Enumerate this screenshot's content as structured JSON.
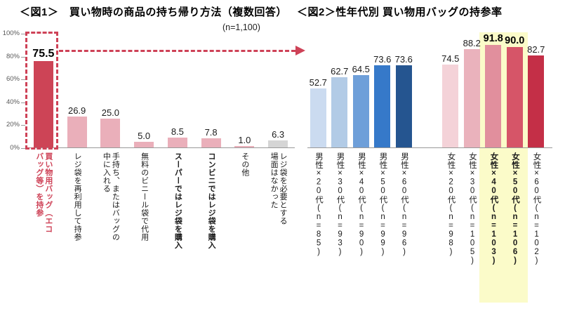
{
  "page": {
    "fig1_title": "＜図1＞　買い物時の商品の持ち帰り方法（複数回答）",
    "fig1_sample": "(n=1,100)",
    "fig2_title": "＜図2＞性年代別 買い物用バッグの持参率"
  },
  "colors": {
    "accent_red": "#CE4257",
    "highlight_yellow": "#FBFBC9",
    "axis_gray": "#999999"
  },
  "chart_data": [
    {
      "id": "fig1",
      "type": "bar",
      "title": "＜図1＞　買い物時の商品の持ち帰り方法（複数回答）",
      "subtitle": "(n=1,100)",
      "categories": [
        "買い物用バッグ（エコ\nバッグ等）を持参",
        "レジ袋を再利用して持参",
        "手持ち、またはバッグの\n中に入れる",
        "無料のビニール袋で代用",
        "スーパーではレジ袋を購入",
        "コンビニではレジ袋を購入",
        "その他",
        "レジ袋を必要とする\n場面はなかった"
      ],
      "values": [
        75.5,
        26.9,
        25.0,
        5.0,
        8.5,
        7.8,
        1.0,
        6.3
      ],
      "value_labels": [
        "75.5",
        "26.9",
        "25.0",
        "5.0",
        "8.5",
        "7.8",
        "1.0",
        "6.3"
      ],
      "bar_colors": [
        "#CD4456",
        "#EAAFBA",
        "#EAAFBA",
        "#EAAFBA",
        "#EAAFBA",
        "#EAAFBA",
        "#EAAFBA",
        "#D5D5D5"
      ],
      "value_classes": [
        "v-big",
        "",
        "",
        "",
        "",
        "",
        "",
        ""
      ],
      "cat_classes": [
        "c-red",
        "",
        "",
        "",
        "c-bold",
        "c-bold",
        "",
        ""
      ],
      "ylabel": "",
      "xlabel": "",
      "ylim": [
        0,
        100
      ],
      "yticks": [
        "100%",
        "80%",
        "60%",
        "40%",
        "20%",
        "0%"
      ],
      "grid": false,
      "annotation": "first bar (75.5) outlined with red dashed box and red dashed arrow pointing to Figure 2"
    },
    {
      "id": "fig2",
      "type": "bar",
      "title": "＜図2＞性年代別 買い物用バッグの持参率",
      "categories": [
        "男性×20代(n=85)",
        "男性×30代(n=93)",
        "男性×40代(n=90)",
        "男性×50代(n=99)",
        "男性×60代(n=96)",
        "女性×20代(n=98)",
        "女性×30代(n=105)",
        "女性×40代(n=103)",
        "女性×50代(n=106)",
        "女性×60代(n=102)"
      ],
      "values": [
        52.7,
        62.7,
        64.5,
        73.6,
        73.6,
        74.5,
        88.2,
        91.8,
        90.0,
        82.7
      ],
      "value_labels": [
        "52.7",
        "62.7",
        "64.5",
        "73.6",
        "73.6",
        "74.5",
        "88.2",
        "91.8",
        "90.0",
        "82.7"
      ],
      "bar_colors": [
        "#CBDBF0",
        "#B2CBE6",
        "#6E9FD9",
        "#3679C9",
        "#255590",
        "#F4D2D8",
        "#EAB2BC",
        "#E18F9D",
        "#D65568",
        "#C42F47"
      ],
      "value_classes": [
        "",
        "",
        "",
        "",
        "",
        "",
        "",
        "v-em",
        "v-em",
        ""
      ],
      "cat_classes": [
        "",
        "",
        "",
        "",
        "",
        "",
        "",
        "c-bold",
        "c-bold",
        ""
      ],
      "ylim": [
        0,
        100
      ],
      "grid": false,
      "highlighted_categories": [
        "女性×40代(n=103)",
        "女性×50代(n=106)"
      ],
      "annotation": "女性×40代 and 女性×50代 columns highlighted with pale yellow band"
    }
  ]
}
